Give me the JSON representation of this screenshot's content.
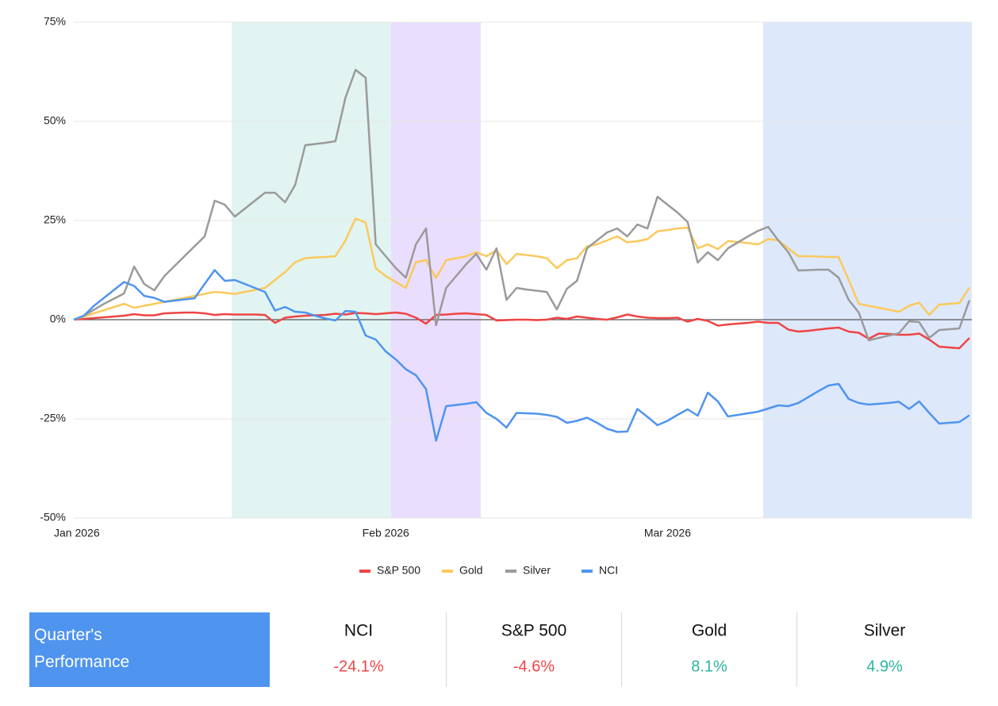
{
  "chart_data": {
    "type": "line",
    "categories": [
      "Jan 2026",
      null,
      null,
      null,
      null,
      null,
      null,
      null,
      null,
      null,
      null,
      null,
      null,
      null,
      null,
      null,
      null,
      null,
      null,
      null,
      null,
      null,
      null,
      null,
      null,
      null,
      null,
      null,
      null,
      null,
      null,
      "Feb 2026",
      null,
      null,
      null,
      null,
      null,
      null,
      null,
      null,
      null,
      null,
      null,
      null,
      null,
      null,
      null,
      null,
      null,
      null,
      null,
      null,
      null,
      null,
      null,
      null,
      null,
      null,
      null,
      "Mar 2026",
      null,
      null,
      null,
      null,
      null,
      null,
      null,
      null,
      null,
      null,
      null,
      null,
      null,
      null,
      null,
      null,
      null,
      null,
      null,
      null,
      null,
      null,
      null,
      null,
      null,
      null,
      null,
      null,
      null,
      null
    ],
    "series": [
      {
        "name": "S&P 500",
        "color": "#ef4444",
        "values": [
          0,
          0.2,
          0.4,
          0.6,
          0.8,
          1,
          1.4,
          1.1,
          1.1,
          1.6,
          1.7,
          1.8,
          1.8,
          1.6,
          1.2,
          1.4,
          1.3,
          1.3,
          1.3,
          1.2,
          -0.8,
          0.5,
          0.8,
          1,
          1.1,
          1.2,
          1.5,
          1.3,
          1.7,
          1.6,
          1.4,
          1.6,
          1.8,
          1.5,
          0.5,
          -1,
          1.2,
          1.3,
          1.5,
          1.6,
          1.4,
          1.2,
          -0.2,
          -0.1,
          0,
          0,
          -0.1,
          0,
          0.5,
          0.2,
          0.8,
          0.5,
          0.2,
          0,
          0.6,
          1.3,
          0.8,
          0.5,
          0.4,
          0.4,
          0.5,
          -0.5,
          0.2,
          -0.3,
          -1.5,
          -1.2,
          -1,
          -0.8,
          -0.5,
          -0.8,
          -0.8,
          -2.5,
          -3,
          -2.8,
          -2.5,
          -2.2,
          -2,
          -3,
          -3.3,
          -4.8,
          -3.5,
          -3.6,
          -3.8,
          -3.8,
          -3.5,
          -5,
          -6.8,
          -7,
          -7.2,
          -4.6
        ]
      },
      {
        "name": "Gold",
        "color": "#fbc95c",
        "values": [
          0,
          0.8,
          1.6,
          2.4,
          3.2,
          4,
          3,
          3.5,
          4,
          4.5,
          5,
          5.5,
          6,
          6.5,
          7,
          6.8,
          6.5,
          7,
          7.5,
          8,
          10,
          12,
          14.5,
          15.5,
          15.7,
          15.8,
          16,
          20,
          25.5,
          24.5,
          13,
          11,
          9.5,
          8,
          14.5,
          15,
          10.5,
          15,
          15.5,
          16,
          17,
          16,
          17.5,
          14,
          16.6,
          16.3,
          16,
          15.5,
          13,
          15,
          15.5,
          18.5,
          19,
          20,
          21,
          19.5,
          19.8,
          20.3,
          22.3,
          22.6,
          23,
          23.2,
          18,
          19,
          17.8,
          19.8,
          19.6,
          19.3,
          19,
          20.3,
          20,
          18,
          16,
          16,
          15.9,
          15.8,
          15.8,
          10,
          4,
          3.5,
          3,
          2.5,
          2,
          3.5,
          4.3,
          1.2,
          3.8,
          4,
          4.2,
          8.1
        ]
      },
      {
        "name": "Silver",
        "color": "#9a9a9a",
        "values": [
          0,
          1,
          2.5,
          4,
          5.3,
          6.6,
          13.4,
          9,
          7.4,
          11,
          13.5,
          16,
          18.5,
          21,
          30,
          29,
          26,
          28,
          30,
          32,
          32,
          29.6,
          34,
          44,
          44.3,
          44.6,
          45,
          56,
          63,
          61,
          19,
          16,
          13,
          10.6,
          19,
          23,
          -1.4,
          8,
          11,
          14,
          16.6,
          12.6,
          18,
          5,
          8,
          7.6,
          7.3,
          7,
          2.6,
          7.8,
          9.8,
          18,
          20,
          22,
          23,
          21,
          24,
          23,
          31,
          29,
          27,
          24.6,
          14.4,
          17,
          15,
          18,
          19.5,
          21,
          22.4,
          23.4,
          20,
          17,
          12.4,
          12.5,
          12.6,
          12.6,
          10.6,
          5,
          1.8,
          -5.2,
          -4.6,
          -4,
          -3.4,
          -0.4,
          -0.6,
          -4.6,
          -2.6,
          -2.4,
          -2.2,
          4.9
        ]
      },
      {
        "name": "NCI",
        "color": "#4f94ef",
        "values": [
          0,
          1,
          3.5,
          5.5,
          7.5,
          9.5,
          8.5,
          6,
          5.5,
          4.5,
          4.8,
          5.1,
          5.4,
          9,
          12.5,
          9.8,
          10,
          9,
          8,
          7,
          2.3,
          3.2,
          2,
          1.8,
          1,
          0.3,
          -0.2,
          2.2,
          2,
          -4,
          -5,
          -8,
          -10,
          -12.5,
          -14,
          -17.5,
          -30.5,
          -21.8,
          -21.5,
          -21.2,
          -20.8,
          -23.5,
          -25,
          -27.2,
          -23.5,
          -23.6,
          -23.7,
          -24,
          -24.5,
          -26,
          -25.5,
          -24.7,
          -26,
          -27.5,
          -28.3,
          -28.2,
          -22.5,
          -24.5,
          -26.6,
          -25.5,
          -24,
          -22.6,
          -24.2,
          -18.4,
          -20.6,
          -24.4,
          -24,
          -23.6,
          -23.2,
          -22.4,
          -21.6,
          -21.8,
          -21,
          -19.5,
          -18,
          -16.6,
          -16.2,
          -20,
          -21,
          -21.4,
          -21.2,
          -21,
          -20.7,
          -22.5,
          -20.6,
          -23.5,
          -26.2,
          -26,
          -25.8,
          -24.1
        ]
      }
    ],
    "ylim": [
      -50,
      75
    ],
    "yticks": [
      {
        "value": -50,
        "label": "-50%"
      },
      {
        "value": -25,
        "label": "-25%"
      },
      {
        "value": 0,
        "label": "0%"
      },
      {
        "value": 25,
        "label": "25%"
      },
      {
        "value": 50,
        "label": "50%"
      },
      {
        "value": 75,
        "label": "75%"
      }
    ],
    "grid": true,
    "legend": "bottom"
  },
  "performance": {
    "title": "Quarter's Performance",
    "columns": [
      {
        "name": "NCI",
        "value": "-24.1%",
        "color": "#ef4444"
      },
      {
        "name": "S&P 500",
        "value": "-4.6%",
        "color": "#ef4444"
      },
      {
        "name": "Gold",
        "value": "8.1%",
        "color": "#2bb5a0"
      },
      {
        "name": "Silver",
        "value": "4.9%",
        "color": "#2bb5a0"
      }
    ]
  }
}
